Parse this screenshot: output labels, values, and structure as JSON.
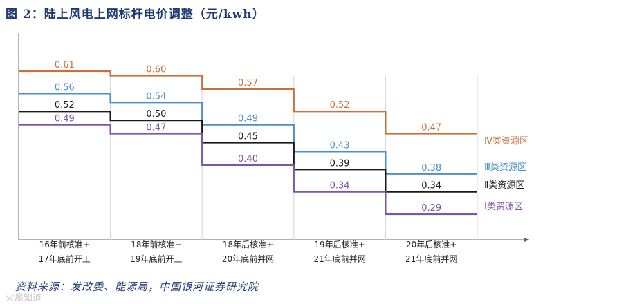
{
  "title": "图 2：陆上风电上网标杆电价调整（元/kwh）",
  "source": "资料来源：发改委、能源局，中国银河证券研究院",
  "watermark": "火犀知道",
  "chart_data": {
    "type": "line",
    "step": true,
    "categories": [
      [
        "16年前核准+",
        "17年底前开工"
      ],
      [
        "18年前核准+",
        "19年底前开工"
      ],
      [
        "18年后核准+",
        "20年底前并网"
      ],
      [
        "19年后核准+",
        "21年底前并网"
      ],
      [
        "20年后核准+",
        "21年底前并网"
      ]
    ],
    "series": [
      {
        "name": "Ⅳ类资源区",
        "color": "#c9703a",
        "values": [
          0.61,
          0.6,
          0.57,
          0.52,
          0.47
        ]
      },
      {
        "name": "Ⅲ类资源区",
        "color": "#4a8fc7",
        "values": [
          0.56,
          0.54,
          0.49,
          0.43,
          0.38
        ]
      },
      {
        "name": "Ⅱ类资源区",
        "color": "#1a1a1a",
        "values": [
          0.52,
          0.5,
          0.45,
          0.39,
          0.34
        ]
      },
      {
        "name": "Ⅰ类资源区",
        "color": "#7d55a8",
        "values": [
          0.49,
          0.47,
          0.4,
          0.34,
          0.29
        ]
      }
    ],
    "label_precision": 2,
    "ylim": [
      0.2,
      0.7
    ],
    "grid": false,
    "legend": "right"
  }
}
